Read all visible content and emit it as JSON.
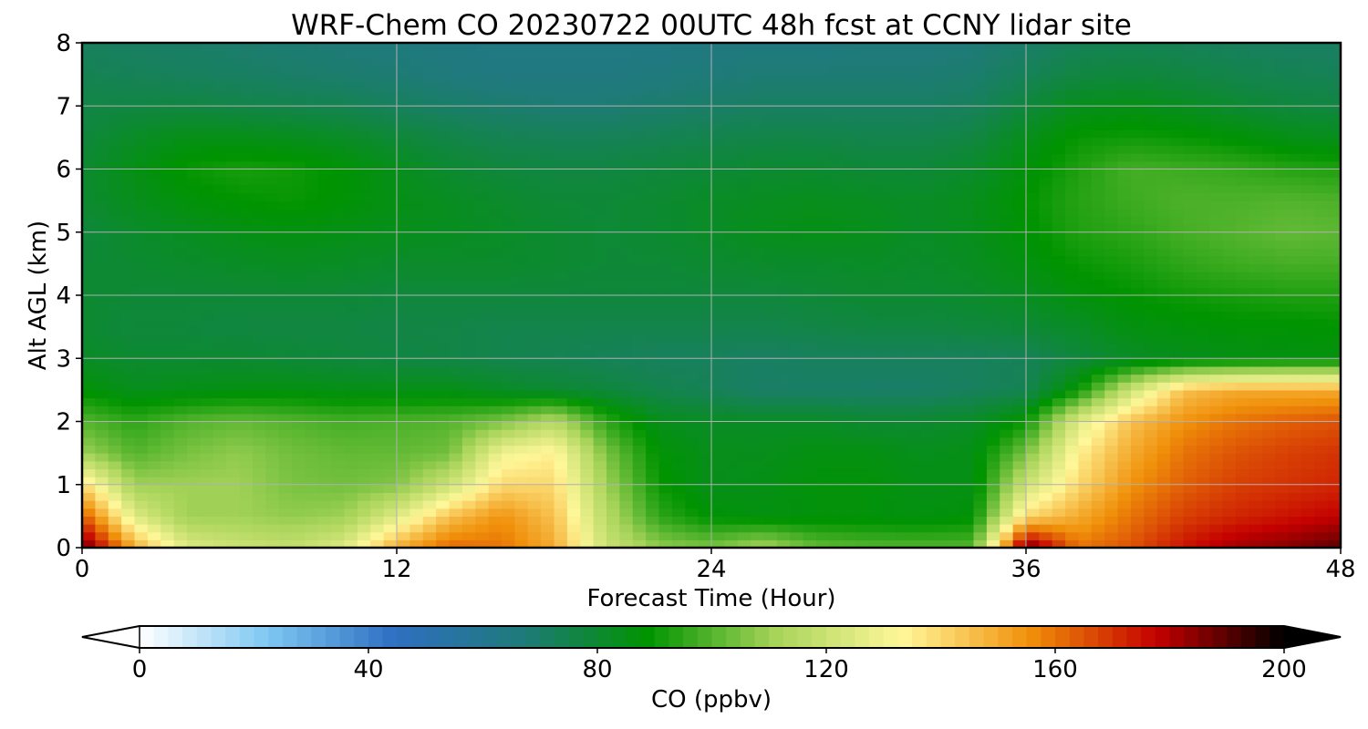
{
  "chart_data": {
    "type": "heatmap",
    "title": "WRF-Chem CO  20230722 00UTC 48h fcst at CCNY lidar site",
    "xlabel": "Forecast Time (Hour)",
    "ylabel": "Alt AGL (km)",
    "xlim": [
      0,
      48
    ],
    "ylim": [
      0,
      8
    ],
    "xticks": [
      "0",
      "12",
      "24",
      "36",
      "48"
    ],
    "yticks": [
      "0",
      "1",
      "2",
      "3",
      "4",
      "5",
      "6",
      "7",
      "8"
    ],
    "grid": true,
    "colorbar": {
      "label": "CO  (ppbv)",
      "range": [
        0,
        200
      ],
      "ticks": [
        "0",
        "40",
        "80",
        "120",
        "160",
        "200"
      ],
      "extend": "both",
      "colors": [
        "#ffffff",
        "#7ec8f2",
        "#2f6fc2",
        "#1f7a7a",
        "#009400",
        "#a8d45a",
        "#fff799",
        "#f0900a",
        "#c40000",
        "#000000"
      ]
    },
    "x": [
      0,
      2,
      4,
      6,
      8,
      10,
      12,
      14,
      16,
      18,
      20,
      22,
      24,
      26,
      28,
      30,
      32,
      34,
      36,
      38,
      40,
      42,
      44,
      46,
      48
    ],
    "y": [
      0,
      0.5,
      1,
      1.5,
      2,
      2.5,
      3,
      3.5,
      4,
      4.5,
      5,
      5.5,
      6,
      6.5,
      7,
      7.5,
      8
    ],
    "values": [
      [
        190,
        150,
        125,
        120,
        118,
        125,
        150,
        162,
        160,
        150,
        120,
        108,
        105,
        112,
        102,
        100,
        100,
        100,
        190,
        160,
        165,
        175,
        182,
        185,
        190
      ],
      [
        165,
        125,
        110,
        110,
        108,
        110,
        125,
        145,
        155,
        145,
        115,
        95,
        88,
        86,
        87,
        87,
        86,
        88,
        140,
        150,
        160,
        168,
        172,
        175,
        178
      ],
      [
        140,
        110,
        110,
        110,
        105,
        104,
        106,
        120,
        140,
        140,
        110,
        90,
        84,
        85,
        87,
        87,
        85,
        85,
        120,
        140,
        155,
        163,
        168,
        170,
        172
      ],
      [
        110,
        100,
        105,
        108,
        104,
        102,
        102,
        104,
        130,
        135,
        105,
        88,
        84,
        84,
        86,
        86,
        84,
        85,
        105,
        135,
        150,
        160,
        165,
        168,
        170
      ],
      [
        100,
        95,
        100,
        102,
        100,
        98,
        99,
        100,
        105,
        115,
        95,
        84,
        82,
        82,
        82,
        80,
        80,
        82,
        90,
        125,
        145,
        155,
        160,
        163,
        165
      ],
      [
        88,
        84,
        85,
        86,
        86,
        85,
        85,
        85,
        82,
        80,
        78,
        75,
        73,
        70,
        70,
        70,
        70,
        72,
        74,
        90,
        120,
        145,
        150,
        150,
        150
      ],
      [
        82,
        80,
        80,
        80,
        79,
        78,
        77,
        76,
        75,
        74,
        73,
        72,
        72,
        71,
        72,
        72,
        72,
        72,
        73,
        78,
        82,
        84,
        85,
        86,
        86
      ],
      [
        80,
        78,
        78,
        77,
        77,
        77,
        76,
        76,
        75,
        75,
        75,
        75,
        75,
        75,
        76,
        77,
        77,
        78,
        79,
        82,
        86,
        87,
        88,
        88,
        89
      ],
      [
        80,
        79,
        79,
        79,
        79,
        79,
        78,
        78,
        78,
        78,
        78,
        78,
        78,
        78,
        79,
        80,
        80,
        81,
        83,
        87,
        89,
        91,
        92,
        93,
        93
      ],
      [
        79,
        80,
        81,
        82,
        83,
        82,
        81,
        81,
        81,
        80,
        79,
        79,
        80,
        81,
        81,
        82,
        81,
        83,
        86,
        90,
        92,
        95,
        97,
        98,
        98
      ],
      [
        78,
        81,
        83,
        85,
        86,
        85,
        84,
        83,
        82,
        80,
        79,
        80,
        82,
        84,
        85,
        84,
        82,
        84,
        88,
        93,
        95,
        98,
        100,
        102,
        101
      ],
      [
        80,
        84,
        87,
        89,
        90,
        88,
        85,
        83,
        81,
        79,
        79,
        80,
        82,
        83,
        84,
        83,
        82,
        84,
        89,
        94,
        97,
        99,
        99,
        100,
        99
      ],
      [
        80,
        85,
        90,
        92,
        91,
        88,
        84,
        80,
        78,
        77,
        77,
        78,
        79,
        80,
        80,
        79,
        79,
        81,
        87,
        93,
        98,
        97,
        96,
        94,
        93
      ],
      [
        78,
        82,
        85,
        85,
        84,
        82,
        79,
        76,
        74,
        73,
        73,
        74,
        75,
        76,
        76,
        75,
        75,
        77,
        84,
        90,
        91,
        90,
        88,
        85,
        84
      ],
      [
        76,
        77,
        77,
        76,
        75,
        74,
        72,
        70,
        69,
        68,
        68,
        69,
        70,
        71,
        71,
        71,
        71,
        72,
        78,
        84,
        85,
        83,
        80,
        78,
        77
      ],
      [
        74,
        73,
        72,
        71,
        70,
        69,
        68,
        66,
        65,
        65,
        65,
        66,
        67,
        68,
        68,
        68,
        68,
        69,
        73,
        77,
        78,
        77,
        75,
        74,
        73
      ],
      [
        72,
        71,
        70,
        69,
        68,
        67,
        66,
        65,
        64,
        64,
        64,
        64,
        65,
        65,
        65,
        66,
        66,
        67,
        70,
        73,
        74,
        73,
        72,
        71,
        71
      ]
    ]
  }
}
